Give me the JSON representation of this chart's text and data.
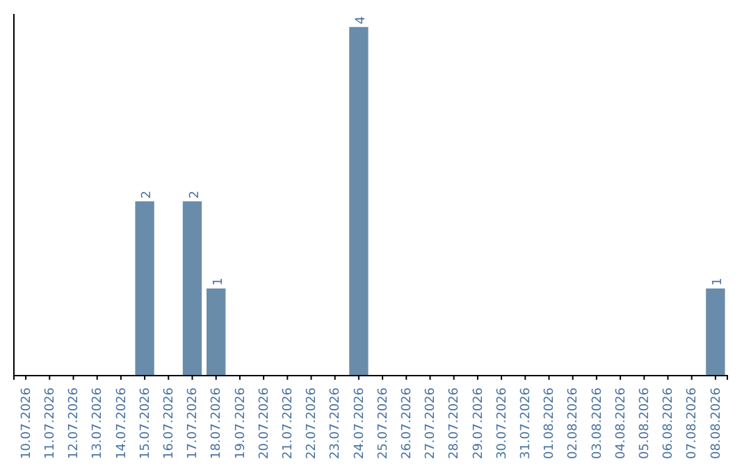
{
  "chart_data": {
    "type": "bar",
    "categories": [
      "10.07.2026",
      "11.07.2026",
      "12.07.2026",
      "13.07.2026",
      "14.07.2026",
      "15.07.2026",
      "16.07.2026",
      "17.07.2026",
      "18.07.2026",
      "19.07.2026",
      "20.07.2026",
      "21.07.2026",
      "22.07.2026",
      "23.07.2026",
      "24.07.2026",
      "25.07.2026",
      "26.07.2026",
      "27.07.2026",
      "28.07.2026",
      "29.07.2026",
      "30.07.2026",
      "31.07.2026",
      "01.08.2026",
      "02.08.2026",
      "03.08.2026",
      "04.08.2026",
      "05.08.2026",
      "06.08.2026",
      "07.08.2026",
      "08.08.2026"
    ],
    "values": [
      0,
      0,
      0,
      0,
      0,
      2,
      0,
      2,
      1,
      0,
      0,
      0,
      0,
      0,
      4,
      0,
      0,
      0,
      0,
      0,
      0,
      0,
      0,
      0,
      0,
      0,
      0,
      0,
      0,
      1
    ],
    "value_labels": [
      null,
      null,
      null,
      null,
      null,
      "2",
      null,
      "2",
      "1",
      null,
      null,
      null,
      null,
      null,
      "4",
      null,
      null,
      null,
      null,
      null,
      null,
      null,
      null,
      null,
      null,
      null,
      null,
      null,
      null,
      "1"
    ],
    "color": "#6a8cab",
    "ylim": [
      0,
      4.15
    ],
    "tick_labels": "x",
    "grid": false
  }
}
